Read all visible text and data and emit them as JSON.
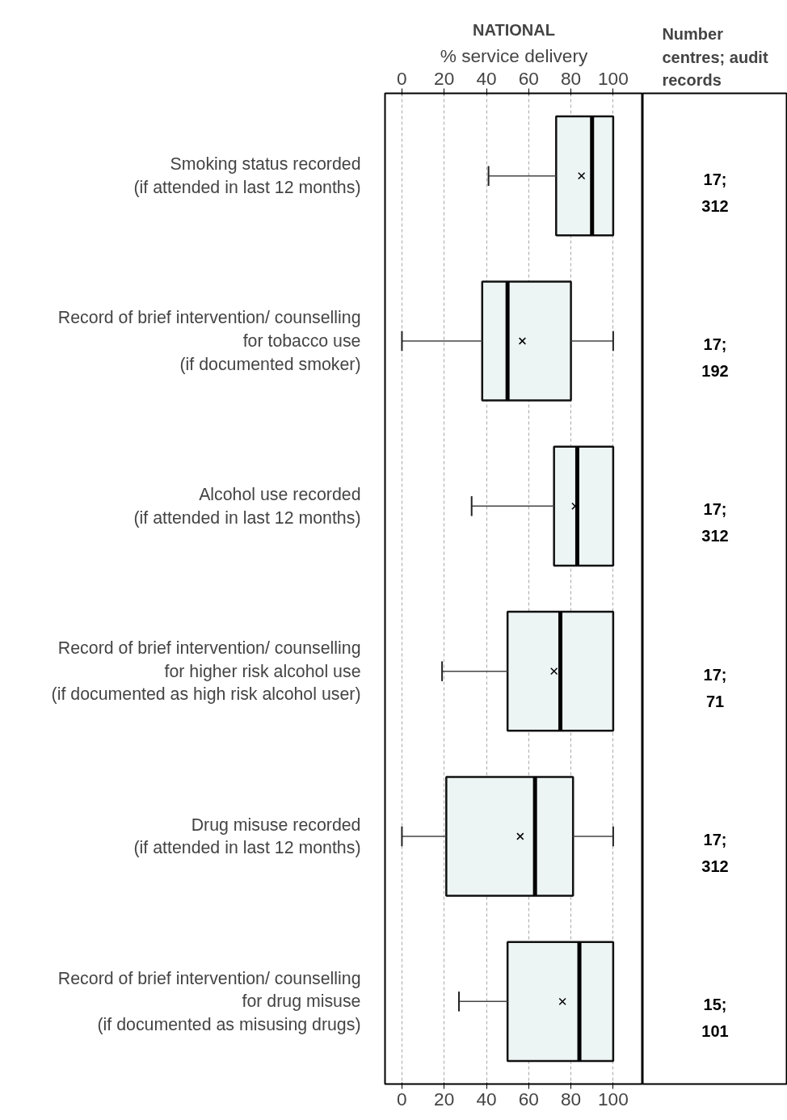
{
  "chart_data": {
    "type": "box",
    "orientation": "horizontal",
    "title": "NATIONAL",
    "xlabel": "% service delivery",
    "categories": [
      "Smoking status recorded\n(if attended in last 12 months)",
      "Record of brief intervention/ counselling\nfor tobacco use\n(if documented smoker)",
      "Alcohol use recorded\n(if attended in last 12 months)",
      "Record of brief intervention/ counselling\nfor higher risk alcohol use\n(if documented as high risk alcohol user)",
      "Drug misuse recorded\n(if attended in last 12 months)",
      "Record of brief intervention/ counselling\nfor drug misuse\n(if documented as misusing drugs)"
    ],
    "xlim": [
      -8,
      114
    ],
    "xticks": [
      0,
      20,
      40,
      60,
      80,
      100
    ],
    "x2lim": [
      -8,
      114
    ],
    "x2ticks": [
      0,
      20,
      40,
      60,
      80,
      100
    ],
    "grid": "x",
    "marker": "cross",
    "series": [
      {
        "color": "#edf4f4",
        "boxes": [
          {
            "low": 41,
            "q1": 73,
            "median": 90,
            "q3": 100,
            "high": 100,
            "mean": 85
          },
          {
            "low": 0,
            "q1": 38,
            "median": 50,
            "q3": 80,
            "high": 100,
            "mean": 57
          },
          {
            "low": 33,
            "q1": 72,
            "median": 83,
            "q3": 100,
            "high": 100,
            "mean": 82
          },
          {
            "low": 19,
            "q1": 50,
            "median": 75,
            "q3": 100,
            "high": 100,
            "mean": 72
          },
          {
            "low": 0,
            "q1": 21,
            "median": 63,
            "q3": 81,
            "high": 100,
            "mean": 56
          },
          {
            "low": 27,
            "q1": 50,
            "median": 84,
            "q3": 100,
            "high": 100,
            "mean": 76
          }
        ]
      }
    ],
    "annotations": [
      "Number\ncentres; audit\nrecords",
      "17;\n312",
      "17;\n192",
      "17;\n312",
      "17;\n71",
      "17;\n312",
      "15;\n101"
    ]
  }
}
